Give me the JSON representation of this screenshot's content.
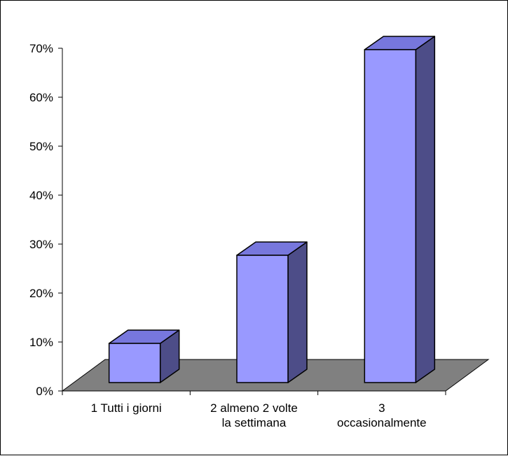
{
  "chart_data": {
    "type": "bar",
    "categories": [
      [
        "1 Tutti i giorni"
      ],
      [
        "2 almeno 2 volte",
        "la settimana"
      ],
      [
        "3",
        "occasionalmente"
      ]
    ],
    "values": [
      8,
      26,
      68
    ],
    "y_ticks": [
      "0%",
      "10%",
      "20%",
      "30%",
      "40%",
      "50%",
      "60%",
      "70%"
    ],
    "ylim": [
      0,
      70
    ],
    "grid": false,
    "legend": "none",
    "colors": {
      "bar_front": "#9999ff",
      "bar_top": "#7777dd",
      "bar_side": "#4d4d88",
      "floor": "#808080",
      "axis": "#000000"
    }
  }
}
